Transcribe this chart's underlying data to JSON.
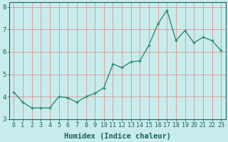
{
  "x": [
    0,
    1,
    2,
    3,
    4,
    5,
    6,
    7,
    8,
    9,
    10,
    11,
    12,
    13,
    14,
    15,
    16,
    17,
    18,
    19,
    20,
    21,
    22,
    23
  ],
  "y": [
    4.2,
    3.75,
    3.5,
    3.5,
    3.5,
    4.0,
    3.95,
    3.75,
    4.0,
    4.15,
    4.4,
    5.45,
    5.3,
    5.55,
    5.6,
    6.3,
    7.25,
    7.85,
    6.5,
    6.95,
    6.4,
    6.65,
    6.5,
    6.05
  ],
  "line_color": "#2e8b72",
  "marker": "D",
  "marker_size": 1.8,
  "bg_color": "#c8ecec",
  "grid_major_color": "#e08080",
  "grid_minor_color": "#e8b0b0",
  "axis_label_color": "#1a5f5f",
  "tick_color": "#1a5f5f",
  "xlabel": "Humidex (Indice chaleur)",
  "ylim": [
    3.0,
    8.2
  ],
  "xlim": [
    -0.5,
    23.5
  ],
  "yticks": [
    3,
    4,
    5,
    6,
    7,
    8
  ],
  "xticks": [
    0,
    1,
    2,
    3,
    4,
    5,
    6,
    7,
    8,
    9,
    10,
    11,
    12,
    13,
    14,
    15,
    16,
    17,
    18,
    19,
    20,
    21,
    22,
    23
  ],
  "xtick_labels": [
    "0",
    "1",
    "2",
    "3",
    "4",
    "5",
    "6",
    "7",
    "8",
    "9",
    "10",
    "11",
    "12",
    "13",
    "14",
    "15",
    "16",
    "17",
    "18",
    "19",
    "20",
    "21",
    "22",
    "23"
  ],
  "spine_color": "#1a5f5f",
  "line_width": 1.0,
  "xlabel_fontsize": 7.5,
  "tick_fontsize": 6.0
}
